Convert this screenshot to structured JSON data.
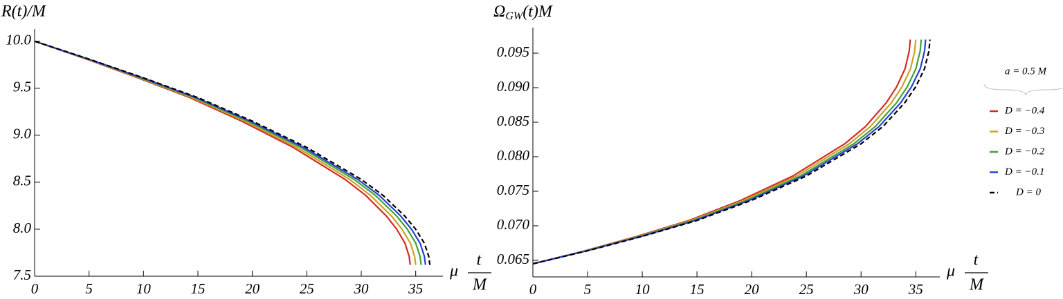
{
  "chart_data": [
    {
      "type": "line",
      "y_label": "R(t)/M",
      "x_label": [
        "μ",
        "t",
        "M"
      ],
      "xlim": [
        0,
        37.5
      ],
      "ylim": [
        7.5,
        10.13
      ],
      "xticks": [
        0,
        5,
        10,
        15,
        20,
        25,
        30,
        35
      ],
      "yticks": [
        7.5,
        {
          "value": 8,
          "label": "8.0"
        },
        8.5,
        {
          "value": 9,
          "label": "9.0"
        },
        9.5,
        {
          "value": 10,
          "label": "10.0"
        }
      ],
      "legend": {
        "title": "a = 0.5 M",
        "position": "right"
      },
      "series": [
        {
          "name": "D = −0.4",
          "color": "#d42a22",
          "dash": false,
          "x": [
            0,
            4.75,
            9.5,
            14.26,
            19.01,
            23.76,
            28.51,
            30.41,
            32.31,
            33.26,
            34.02,
            34.4,
            34.5
          ],
          "values": [
            10.0,
            9.81,
            9.61,
            9.4,
            9.15,
            8.87,
            8.53,
            8.36,
            8.14,
            8.0,
            7.85,
            7.71,
            7.62
          ]
        },
        {
          "name": "D = −0.3",
          "color": "#c9a227",
          "dash": false,
          "x": [
            0,
            4.82,
            9.64,
            14.46,
            19.28,
            24.1,
            28.93,
            30.85,
            32.78,
            33.75,
            34.52,
            34.9,
            35.0
          ],
          "values": [
            10.0,
            9.81,
            9.61,
            9.4,
            9.15,
            8.87,
            8.53,
            8.36,
            8.14,
            8.0,
            7.85,
            7.71,
            7.62
          ]
        },
        {
          "name": "D = −0.2",
          "color": "#3ca535",
          "dash": false,
          "x": [
            0,
            4.89,
            9.78,
            14.67,
            19.56,
            24.45,
            29.34,
            31.3,
            33.25,
            34.23,
            35.01,
            35.4,
            35.5
          ],
          "values": [
            10.0,
            9.81,
            9.61,
            9.4,
            9.15,
            8.87,
            8.53,
            8.36,
            8.14,
            8.0,
            7.85,
            7.71,
            7.62
          ]
        },
        {
          "name": "D = −0.1",
          "color": "#2a3fd2",
          "dash": false,
          "x": [
            0,
            4.94,
            9.89,
            14.83,
            19.78,
            24.72,
            29.67,
            31.65,
            33.63,
            34.61,
            35.41,
            35.8,
            35.9
          ],
          "values": [
            10.0,
            9.81,
            9.61,
            9.4,
            9.15,
            8.87,
            8.53,
            8.36,
            8.14,
            8.0,
            7.85,
            7.71,
            7.62
          ]
        },
        {
          "name": "D = 0",
          "color": "#000000",
          "dash": true,
          "x": [
            0,
            5,
            10,
            15,
            20,
            25,
            30,
            32,
            34,
            35,
            35.8,
            36.2,
            36.3
          ],
          "values": [
            10.0,
            9.81,
            9.61,
            9.4,
            9.15,
            8.87,
            8.53,
            8.36,
            8.14,
            8.0,
            7.85,
            7.71,
            7.62
          ]
        }
      ]
    },
    {
      "type": "line",
      "y_label": [
        "Ω",
        "GW",
        "(t)M"
      ],
      "x_label": [
        "μ",
        "t",
        "M"
      ],
      "xlim": [
        0,
        37.2
      ],
      "ylim": [
        0.0626,
        0.0987
      ],
      "xticks": [
        0,
        5,
        10,
        15,
        20,
        25,
        30,
        35
      ],
      "yticks": [
        0.065,
        {
          "value": 0.07,
          "label": "0.070"
        },
        0.075,
        {
          "value": 0.08,
          "label": "0.080"
        },
        0.085,
        {
          "value": 0.09,
          "label": "0.090"
        },
        0.095
      ],
      "series": [
        {
          "color": "#d42a22",
          "dash": false,
          "x": [
            0,
            4.75,
            9.5,
            14.26,
            19.01,
            23.76,
            28.51,
            30.41,
            32.31,
            33.26,
            34.02,
            34.4,
            34.5
          ],
          "values": [
            0.0645,
            0.06638,
            0.06847,
            0.07077,
            0.07369,
            0.07721,
            0.08188,
            0.08438,
            0.08783,
            0.09014,
            0.09274,
            0.09527,
            0.09696
          ]
        },
        {
          "color": "#c9a227",
          "dash": false,
          "x": [
            0,
            4.82,
            9.64,
            14.46,
            19.28,
            24.1,
            28.93,
            30.85,
            32.78,
            33.75,
            34.52,
            34.9,
            35.0
          ],
          "values": [
            0.0645,
            0.06638,
            0.06847,
            0.07077,
            0.07369,
            0.07721,
            0.08188,
            0.08438,
            0.08783,
            0.09014,
            0.09274,
            0.09527,
            0.09696
          ]
        },
        {
          "color": "#3ca535",
          "dash": false,
          "x": [
            0,
            4.89,
            9.78,
            14.67,
            19.56,
            24.45,
            29.34,
            31.3,
            33.25,
            34.23,
            35.01,
            35.4,
            35.5
          ],
          "values": [
            0.0645,
            0.06638,
            0.06847,
            0.07077,
            0.07369,
            0.07721,
            0.08188,
            0.08438,
            0.08783,
            0.09014,
            0.09274,
            0.09527,
            0.09696
          ]
        },
        {
          "color": "#2a3fd2",
          "dash": false,
          "x": [
            0,
            4.94,
            9.89,
            14.83,
            19.78,
            24.72,
            29.67,
            31.65,
            33.63,
            34.61,
            35.41,
            35.8,
            35.9
          ],
          "values": [
            0.0645,
            0.06638,
            0.06847,
            0.07077,
            0.07369,
            0.07721,
            0.08188,
            0.08438,
            0.08783,
            0.09014,
            0.09274,
            0.09527,
            0.09696
          ]
        },
        {
          "color": "#000000",
          "dash": true,
          "x": [
            0,
            5,
            10,
            15,
            20,
            25,
            30,
            32,
            34,
            35,
            35.8,
            36.2,
            36.3
          ],
          "values": [
            0.0645,
            0.06638,
            0.06847,
            0.07077,
            0.07369,
            0.07721,
            0.08188,
            0.08438,
            0.08783,
            0.09014,
            0.09274,
            0.09527,
            0.09696
          ]
        }
      ]
    }
  ]
}
